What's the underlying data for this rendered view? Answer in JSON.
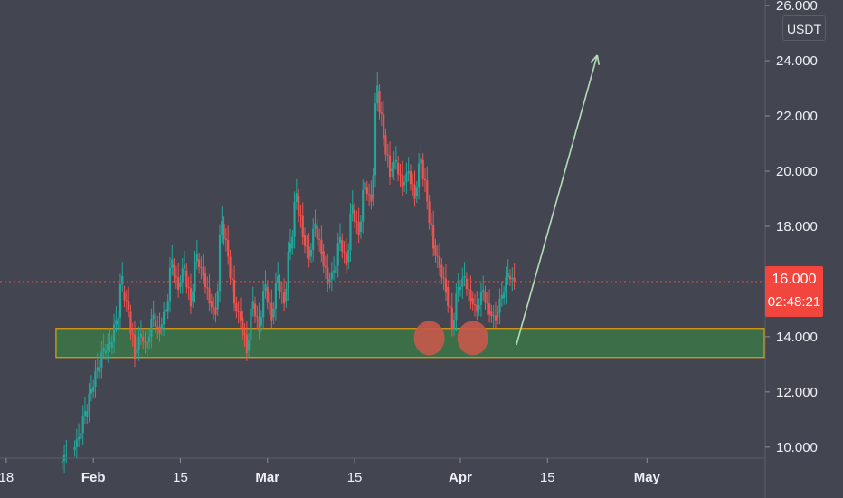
{
  "quote_currency": "USDT",
  "last_price": {
    "value": 16.0,
    "label": "16.000",
    "countdown": "02:48:21"
  },
  "colors": {
    "background": "#434651",
    "up": "#26a69a",
    "down": "#ef5350",
    "support_fill": "#3c6e47",
    "support_border": "#e0a10e",
    "marker": "#c7584b",
    "projection_arrow": "#b5dcb8",
    "last_price_line": "#f2453d",
    "text": "#eef0f5"
  },
  "chart_data": {
    "type": "candlestick",
    "y_axis": {
      "range": [
        9.6,
        26.2
      ],
      "position": "right",
      "ticks": [
        {
          "value": 26,
          "label": "26.000"
        },
        {
          "value": 24,
          "label": "24.000"
        },
        {
          "value": 22,
          "label": "22.000"
        },
        {
          "value": 20,
          "label": "20.000"
        },
        {
          "value": 18,
          "label": "18.000"
        },
        {
          "value": 16,
          "label": "16.000"
        },
        {
          "value": 14,
          "label": "14.000"
        },
        {
          "value": 12,
          "label": "12.000"
        },
        {
          "value": 10,
          "label": "10.000"
        }
      ]
    },
    "x_axis": {
      "range": [
        "Jan 17",
        "May 20"
      ],
      "ticks": [
        {
          "date": "Jan 18",
          "label": "18",
          "major": false
        },
        {
          "date": "Feb 1",
          "label": "Feb",
          "major": true
        },
        {
          "date": "Feb 15",
          "label": "15",
          "major": false
        },
        {
          "date": "Mar 1",
          "label": "Mar",
          "major": true
        },
        {
          "date": "Mar 15",
          "label": "15",
          "major": false
        },
        {
          "date": "Apr 1",
          "label": "Apr",
          "major": true
        },
        {
          "date": "Apr 15",
          "label": "15",
          "major": false
        },
        {
          "date": "May 1",
          "label": "May",
          "major": true
        }
      ]
    },
    "series": [
      {
        "interval": "8h",
        "points": [
          [
            "Jan 27",
            9.45,
            9.75
          ],
          [
            "Jan 29",
            9.9,
            10.35
          ],
          [
            "Jan 30",
            10.3,
            11.3
          ],
          [
            "Jan 31",
            11.1,
            12.1
          ],
          [
            "Feb 1",
            12.0,
            12.9
          ],
          [
            "Feb 2",
            12.7,
            13.6
          ],
          [
            "Feb 3",
            13.4,
            13.8
          ],
          [
            "Feb 4",
            13.6,
            14.6
          ],
          [
            "Feb 5",
            14.3,
            16.2
          ],
          [
            "Feb 6",
            15.6,
            15.0
          ],
          [
            "Feb 7",
            14.9,
            13.2
          ],
          [
            "Feb 8",
            13.4,
            14.1
          ],
          [
            "Feb 9",
            14.0,
            13.6
          ],
          [
            "Feb 10",
            13.8,
            14.8
          ],
          [
            "Feb 11",
            14.6,
            14.1
          ],
          [
            "Feb 12",
            14.3,
            15.0
          ],
          [
            "Feb 13",
            14.9,
            16.8
          ],
          [
            "Feb 14",
            16.6,
            15.7
          ],
          [
            "Feb 15",
            15.8,
            16.6
          ],
          [
            "Feb 16",
            16.4,
            15.1
          ],
          [
            "Feb 17",
            15.3,
            17.0
          ],
          [
            "Feb 18",
            16.8,
            16.2
          ],
          [
            "Feb 19",
            16.3,
            15.2
          ],
          [
            "Feb 20",
            15.3,
            14.8
          ],
          [
            "Feb 21",
            15.0,
            18.2
          ],
          [
            "Feb 22",
            18.1,
            16.9
          ],
          [
            "Feb 23",
            16.9,
            15.2
          ],
          [
            "Feb 24",
            15.2,
            14.6
          ],
          [
            "Feb 25",
            14.7,
            13.4
          ],
          [
            "Feb 26",
            13.5,
            15.3
          ],
          [
            "Feb 27",
            15.2,
            14.2
          ],
          [
            "Feb 28",
            14.4,
            15.9
          ],
          [
            "Mar 1",
            15.8,
            14.6
          ],
          [
            "Mar 2",
            14.7,
            16.2
          ],
          [
            "Mar 3",
            16.0,
            15.2
          ],
          [
            "Mar 4",
            15.3,
            17.4
          ],
          [
            "Mar 5",
            17.2,
            19.2
          ],
          [
            "Mar 6",
            19.1,
            17.6
          ],
          [
            "Mar 7",
            17.7,
            16.8
          ],
          [
            "Mar 8",
            16.9,
            18.1
          ],
          [
            "Mar 9",
            18.0,
            17.0
          ],
          [
            "Mar 10",
            17.1,
            15.9
          ],
          [
            "Mar 11",
            16.0,
            16.4
          ],
          [
            "Mar 12",
            16.3,
            17.6
          ],
          [
            "Mar 13",
            17.5,
            16.6
          ],
          [
            "Mar 14",
            16.7,
            18.8
          ],
          [
            "Mar 15",
            18.6,
            17.7
          ],
          [
            "Mar 16",
            17.8,
            19.6
          ],
          [
            "Mar 17",
            19.4,
            18.9
          ],
          [
            "Mar 18",
            19.0,
            23.1
          ],
          [
            "Mar 19",
            22.9,
            21.2
          ],
          [
            "Mar 20",
            21.3,
            19.8
          ],
          [
            "Mar 21",
            20.0,
            20.4
          ],
          [
            "Mar 22",
            20.3,
            19.4
          ],
          [
            "Mar 23",
            19.5,
            20.0
          ],
          [
            "Mar 24",
            20.0,
            19.0
          ],
          [
            "Mar 25",
            19.1,
            20.5
          ],
          [
            "Mar 26",
            20.4,
            18.9
          ],
          [
            "Mar 27",
            18.9,
            17.2
          ],
          [
            "Mar 28",
            17.3,
            16.5
          ],
          [
            "Mar 29",
            16.6,
            15.6
          ],
          [
            "Mar 30",
            15.8,
            14.3
          ],
          [
            "Mar 31",
            14.3,
            15.8
          ],
          [
            "Apr 1",
            15.7,
            16.2
          ],
          [
            "Apr 2",
            16.1,
            15.3
          ],
          [
            "Apr 3",
            15.4,
            14.9
          ],
          [
            "Apr 4",
            15.0,
            15.7
          ],
          [
            "Apr 5",
            15.6,
            14.8
          ],
          [
            "Apr 6",
            14.9,
            14.6
          ],
          [
            "Apr 7",
            14.7,
            15.5
          ],
          [
            "Apr 8",
            15.4,
            16.3
          ],
          [
            "Apr 9",
            16.2,
            16.0
          ]
        ]
      }
    ],
    "last_price_line": 16.0,
    "annotations": [
      {
        "type": "zone",
        "from": "Jan 26",
        "to": "May 20",
        "low": 13.25,
        "high": 14.3
      },
      {
        "type": "circle",
        "date": "Mar 27",
        "price": 13.95
      },
      {
        "type": "circle",
        "date": "Apr 3",
        "price": 13.95
      },
      {
        "type": "arrow",
        "from": {
          "date": "Apr 10",
          "price": 13.7
        },
        "to": {
          "date": "Apr 23",
          "price": 24.2
        }
      }
    ]
  }
}
